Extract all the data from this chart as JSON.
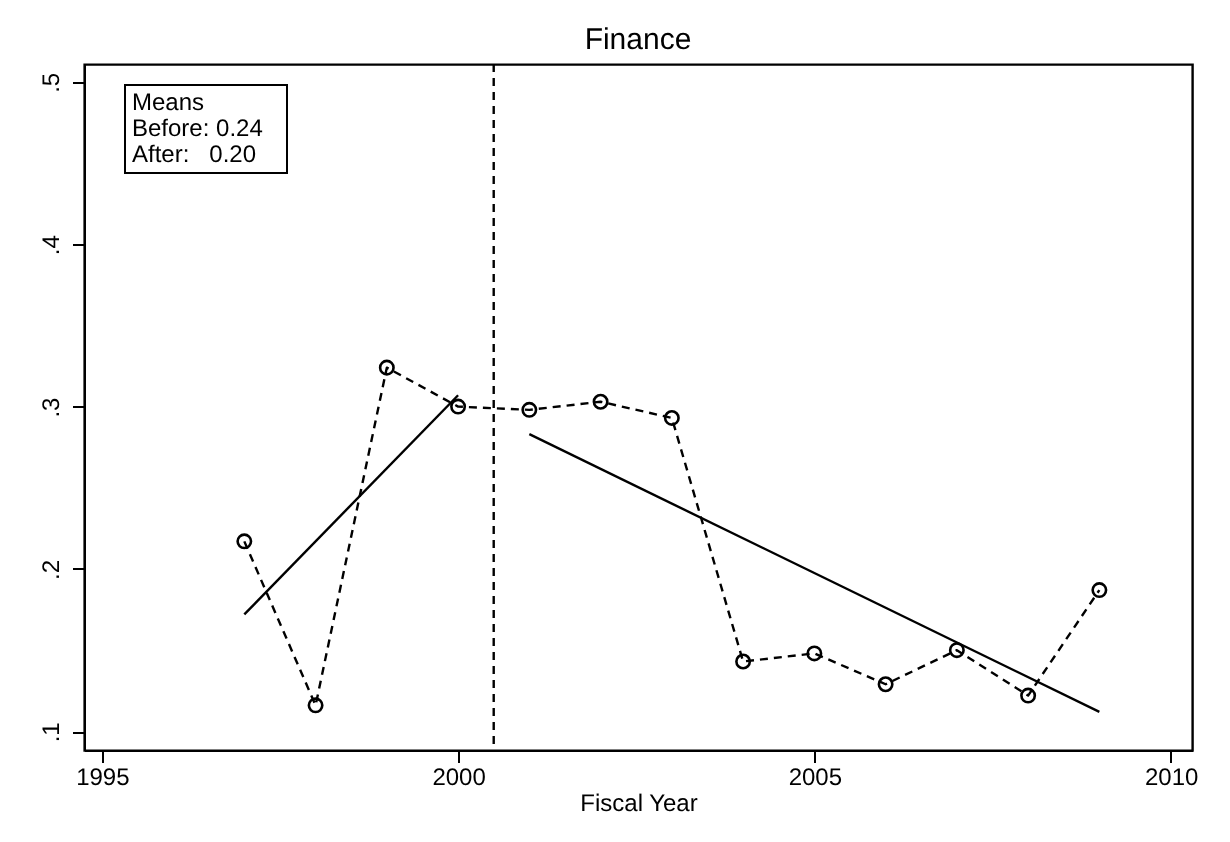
{
  "chart_data": {
    "type": "line",
    "title": "Finance",
    "xlabel": "Fiscal Year",
    "xlim": [
      1994.75,
      2010.3
    ],
    "xticks": [
      1995,
      2000,
      2005,
      2010
    ],
    "ylim": [
      0.0885,
      0.511
    ],
    "yticks": [
      {
        "value": 0.1,
        "label": ".1"
      },
      {
        "value": 0.2,
        "label": ".2"
      },
      {
        "value": 0.3,
        "label": ".3"
      },
      {
        "value": 0.4,
        "label": ".4"
      },
      {
        "value": 0.5,
        "label": ".5"
      }
    ],
    "grid": false,
    "series": [
      {
        "color": "#000000",
        "line_style": "dashed",
        "marker": "circle",
        "x": [
          1997,
          1998,
          1999,
          2000,
          2001,
          2002,
          2003,
          2004,
          2005,
          2006,
          2007,
          2008,
          2009
        ],
        "values": [
          0.217,
          0.116,
          0.324,
          0.3,
          0.298,
          0.303,
          0.293,
          0.143,
          0.148,
          0.129,
          0.15,
          0.122,
          0.187
        ]
      },
      {
        "type": "line",
        "color": "#000000",
        "line_style": "solid",
        "marker": "none",
        "x": [
          1997,
          2000
        ],
        "values": [
          0.172,
          0.307
        ]
      },
      {
        "type": "line",
        "color": "#000000",
        "line_style": "solid",
        "marker": "none",
        "x": [
          2001,
          2009
        ],
        "values": [
          0.283,
          0.112
        ]
      }
    ],
    "ref_lines": [
      {
        "axis": "x",
        "value": 2000.5,
        "color": "#000000",
        "line_style": "dashed"
      }
    ],
    "annotations": [
      "Means",
      "Before: 0.24",
      "After:   0.20"
    ]
  }
}
